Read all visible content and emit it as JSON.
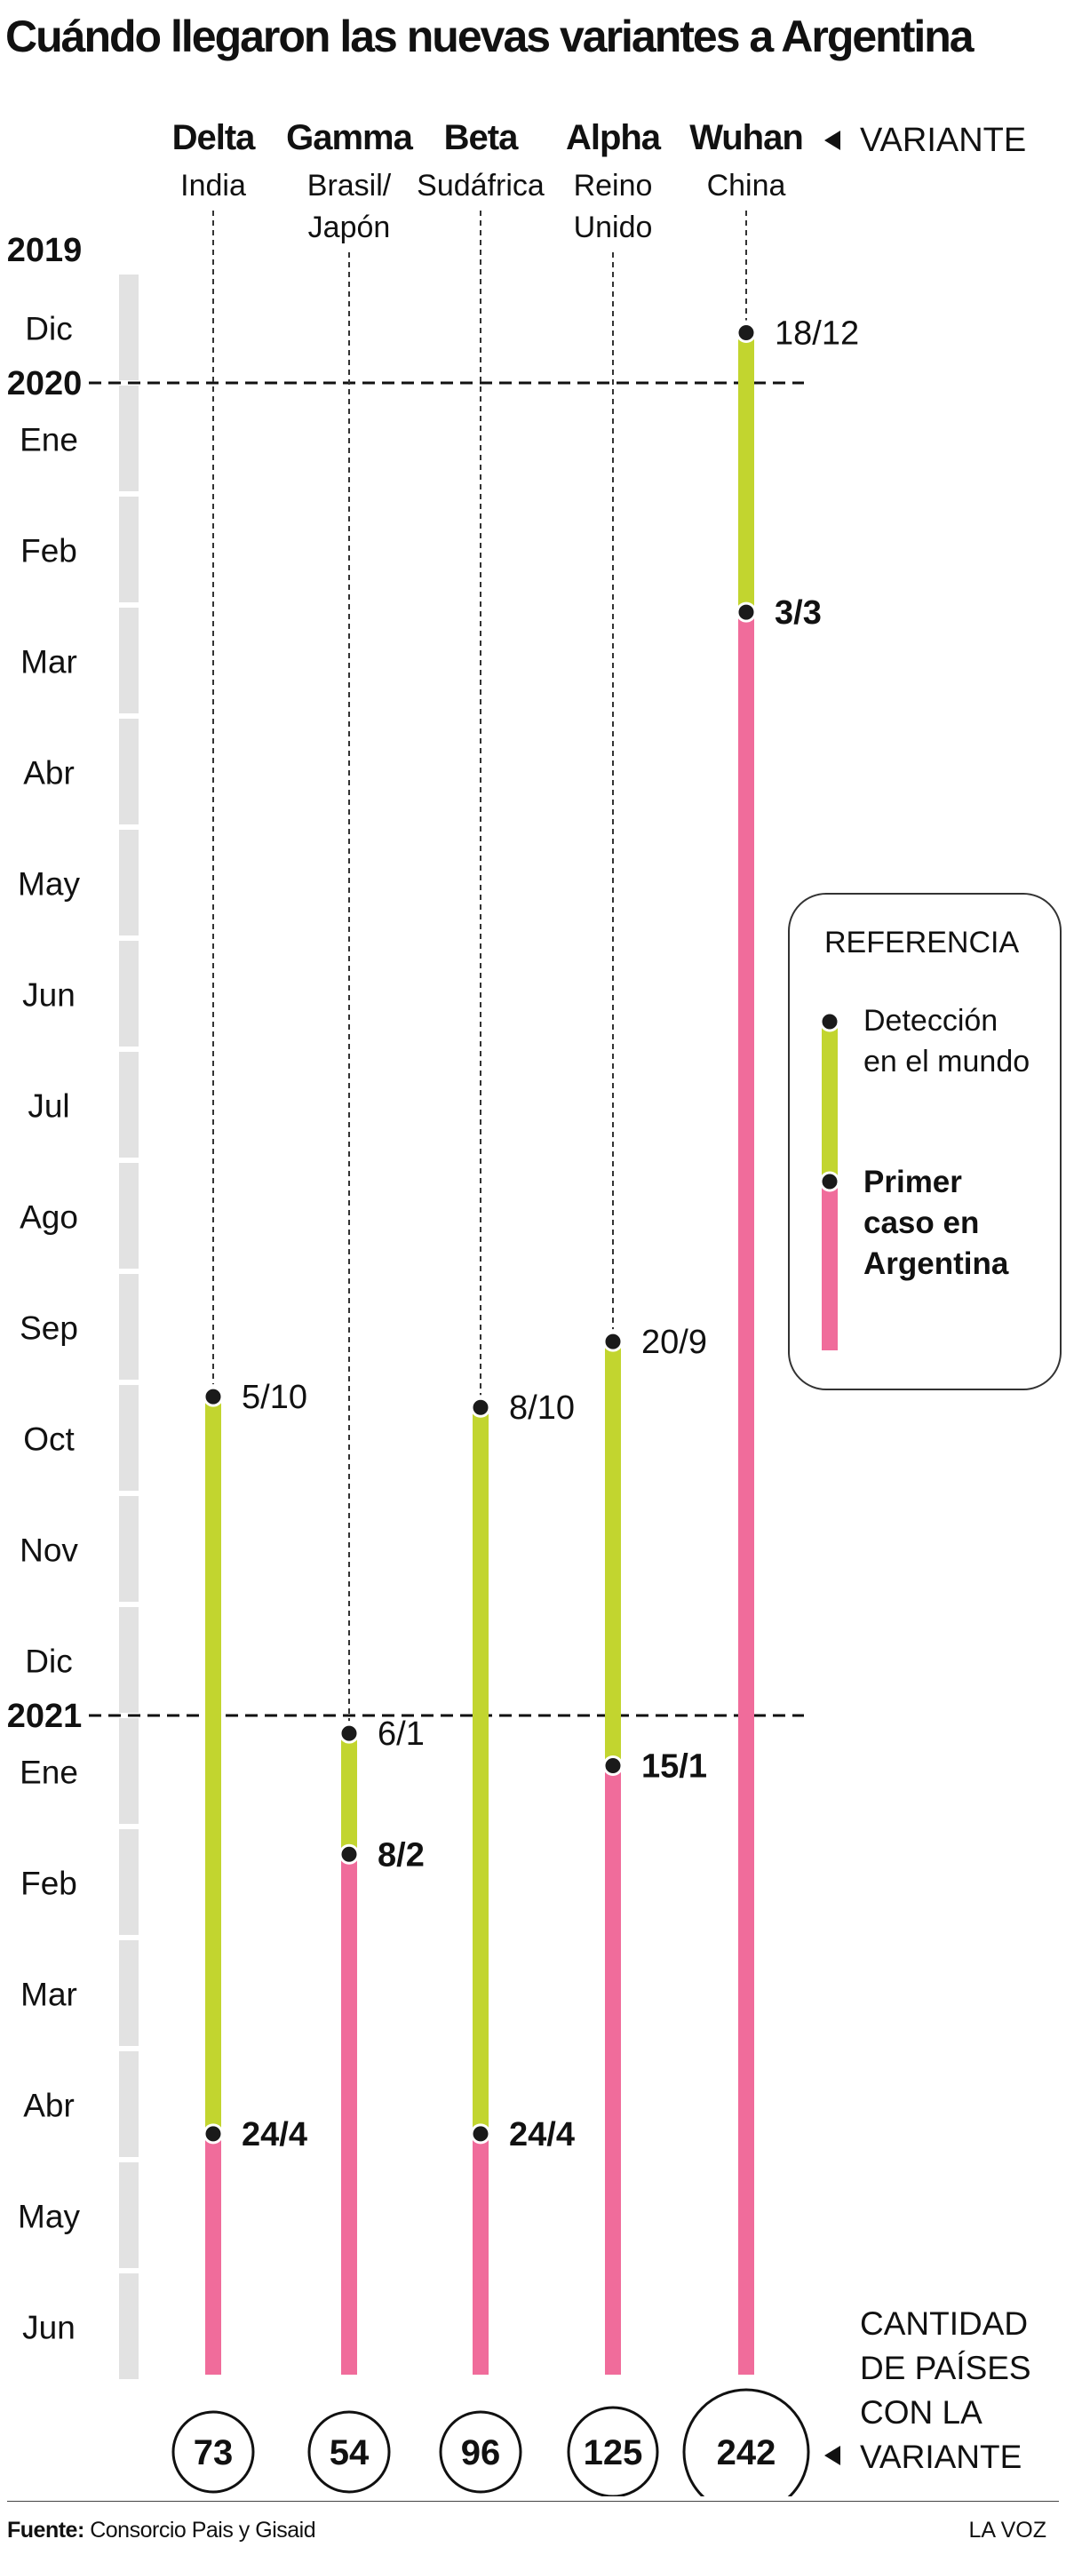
{
  "title": "Cuándo llegaron las nuevas variantes a Argentina",
  "chart_data": {
    "type": "timeline",
    "variant_header_label": "VARIANTE",
    "count_label_lines": [
      "CANTIDAD",
      "DE PAÍSES",
      "CON LA",
      "VARIANTE"
    ],
    "years": [
      "2019",
      "2020",
      "2021"
    ],
    "months": [
      "Dic",
      "Ene",
      "Feb",
      "Mar",
      "Abr",
      "May",
      "Jun",
      "Jul",
      "Ago",
      "Sep",
      "Oct",
      "Nov",
      "Dic",
      "Ene",
      "Feb",
      "Mar",
      "Abr",
      "May",
      "Jun"
    ],
    "series": [
      {
        "name": "Delta",
        "origin": [
          "India"
        ],
        "detected": "5/10",
        "detected_date": "2020-10-05",
        "argentina": "24/4",
        "argentina_date": "2021-04-24",
        "countries": 73
      },
      {
        "name": "Gamma",
        "origin": [
          "Brasil/",
          "Japón"
        ],
        "detected": "6/1",
        "detected_date": "2021-01-06",
        "argentina": "8/2",
        "argentina_date": "2021-02-08",
        "countries": 54
      },
      {
        "name": "Beta",
        "origin": [
          "Sudáfrica"
        ],
        "detected": "8/10",
        "detected_date": "2020-10-08",
        "argentina": "24/4",
        "argentina_date": "2021-04-24",
        "countries": 96
      },
      {
        "name": "Alpha",
        "origin": [
          "Reino",
          "Unido"
        ],
        "detected": "20/9",
        "detected_date": "2020-09-20",
        "argentina": "15/1",
        "argentina_date": "2021-01-15",
        "countries": 125
      },
      {
        "name": "Wuhan",
        "origin": [
          "China"
        ],
        "detected": "18/12",
        "detected_date": "2019-12-18",
        "argentina": "3/3",
        "argentina_date": "2020-03-03",
        "countries": 242
      }
    ],
    "legend": {
      "title": "REFERENCIA",
      "world_lines": [
        "Detección",
        "en el mundo"
      ],
      "argentina_lines": [
        "Primer",
        "caso en",
        "Argentina"
      ]
    },
    "colors": {
      "world": "#c2d52f",
      "argentina": "#f06c9b",
      "month_bar": "#e2e2e2",
      "dot": "#1a1a1a"
    }
  },
  "footer": {
    "source_label": "Fuente:",
    "source_text": " Consorcio Pais y Gisaid",
    "brand": "LA VOZ"
  }
}
